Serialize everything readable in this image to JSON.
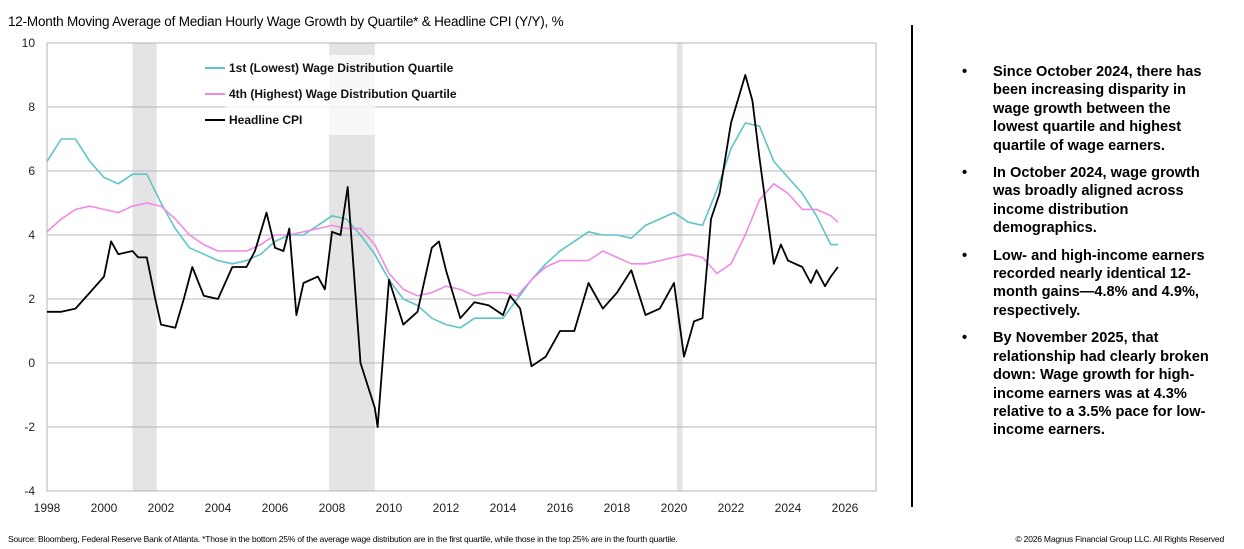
{
  "chart_data": {
    "type": "line",
    "title": "12-Month Moving Average of Median Hourly Wage Growth by Quartile* & Headline CPI (Y/Y), %",
    "xlim": [
      1998,
      2027.1
    ],
    "ylim": [
      -4,
      10
    ],
    "x_ticks": [
      1998,
      2000,
      2002,
      2004,
      2006,
      2008,
      2010,
      2012,
      2014,
      2016,
      2018,
      2020,
      2022,
      2024,
      2026
    ],
    "y_ticks": [
      -4,
      -2,
      0,
      2,
      4,
      6,
      8,
      10
    ],
    "grid": "horizontal",
    "legend_placement": "top-center",
    "recession_shading": [
      [
        2001.0,
        2001.85
      ],
      [
        2007.9,
        2009.5
      ],
      [
        2020.1,
        2020.3
      ]
    ],
    "series": [
      {
        "name": "1st (Lowest) Wage Distribution Quartile",
        "color": "#5ec4c8",
        "x": [
          1998,
          1998.5,
          1999,
          1999.5,
          2000,
          2000.5,
          2001,
          2001.5,
          2002,
          2002.5,
          2003,
          2003.5,
          2004,
          2004.5,
          2005,
          2005.5,
          2006,
          2006.5,
          2007,
          2007.5,
          2008,
          2008.5,
          2009,
          2009.5,
          2010,
          2010.5,
          2011,
          2011.5,
          2012,
          2012.5,
          2013,
          2013.5,
          2014,
          2014.5,
          2015,
          2015.5,
          2016,
          2016.5,
          2017,
          2017.5,
          2018,
          2018.5,
          2019,
          2019.5,
          2020,
          2020.5,
          2021,
          2021.5,
          2022,
          2022.5,
          2023,
          2023.5,
          2024,
          2024.5,
          2025,
          2025.5,
          2025.75
        ],
        "y": [
          6.3,
          7.0,
          7.0,
          6.3,
          5.8,
          5.6,
          5.9,
          5.9,
          5.0,
          4.2,
          3.6,
          3.4,
          3.2,
          3.1,
          3.2,
          3.4,
          3.8,
          4.0,
          4.0,
          4.3,
          4.6,
          4.5,
          4.0,
          3.4,
          2.6,
          2.0,
          1.8,
          1.4,
          1.2,
          1.1,
          1.4,
          1.4,
          1.4,
          2.0,
          2.6,
          3.1,
          3.5,
          3.8,
          4.1,
          4.0,
          4.0,
          3.9,
          4.3,
          4.5,
          4.7,
          4.4,
          4.3,
          5.4,
          6.7,
          7.5,
          7.4,
          6.3,
          5.8,
          5.3,
          4.6,
          3.7,
          3.7
        ]
      },
      {
        "name": "4th (Highest) Wage Distribution Quartile",
        "color": "#f08ae6",
        "x": [
          1998,
          1998.5,
          1999,
          1999.5,
          2000,
          2000.5,
          2001,
          2001.5,
          2002,
          2002.5,
          2003,
          2003.5,
          2004,
          2004.5,
          2005,
          2005.5,
          2006,
          2006.5,
          2007,
          2007.5,
          2008,
          2008.5,
          2009,
          2009.5,
          2010,
          2010.5,
          2011,
          2011.5,
          2012,
          2012.5,
          2013,
          2013.5,
          2014,
          2014.5,
          2015,
          2015.5,
          2016,
          2016.5,
          2017,
          2017.5,
          2018,
          2018.5,
          2019,
          2019.5,
          2020,
          2020.5,
          2021,
          2021.5,
          2022,
          2022.5,
          2023,
          2023.5,
          2024,
          2024.5,
          2025,
          2025.5,
          2025.75
        ],
        "y": [
          4.1,
          4.5,
          4.8,
          4.9,
          4.8,
          4.7,
          4.9,
          5.0,
          4.9,
          4.5,
          4.0,
          3.7,
          3.5,
          3.5,
          3.5,
          3.7,
          4.0,
          4.0,
          4.1,
          4.2,
          4.3,
          4.2,
          4.2,
          3.7,
          2.8,
          2.3,
          2.1,
          2.2,
          2.4,
          2.3,
          2.1,
          2.2,
          2.2,
          2.1,
          2.6,
          3.0,
          3.2,
          3.2,
          3.2,
          3.5,
          3.3,
          3.1,
          3.1,
          3.2,
          3.3,
          3.4,
          3.3,
          2.8,
          3.1,
          4.0,
          5.1,
          5.6,
          5.3,
          4.8,
          4.8,
          4.6,
          4.4
        ]
      },
      {
        "name": "Headline CPI",
        "color": "#000000",
        "x": [
          1998,
          1998.5,
          1999,
          1999.5,
          2000,
          2000.25,
          2000.5,
          2001,
          2001.2,
          2001.5,
          2001.8,
          2002,
          2002.5,
          2002.8,
          2003.1,
          2003.5,
          2004,
          2004.5,
          2005,
          2005.3,
          2005.7,
          2006,
          2006.3,
          2006.5,
          2006.75,
          2007,
          2007.5,
          2007.75,
          2008,
          2008.3,
          2008.55,
          2009,
          2009.5,
          2009.6,
          2010,
          2010.5,
          2011,
          2011.5,
          2011.75,
          2012,
          2012.5,
          2013,
          2013.5,
          2014,
          2014.25,
          2014.6,
          2015,
          2015.5,
          2016,
          2016.5,
          2017,
          2017.5,
          2018,
          2018.5,
          2019,
          2019.5,
          2020,
          2020.35,
          2020.7,
          2021,
          2021.3,
          2021.6,
          2022,
          2022.5,
          2022.75,
          2023,
          2023.5,
          2023.75,
          2024,
          2024.5,
          2024.8,
          2025,
          2025.3,
          2025.5,
          2025.75
        ],
        "y": [
          1.6,
          1.6,
          1.7,
          2.2,
          2.7,
          3.8,
          3.4,
          3.5,
          3.3,
          3.3,
          2.0,
          1.2,
          1.1,
          2.0,
          3.0,
          2.1,
          2.0,
          3.0,
          3.0,
          3.5,
          4.7,
          3.6,
          3.5,
          4.2,
          1.5,
          2.5,
          2.7,
          2.3,
          4.1,
          4.0,
          5.5,
          0.0,
          -1.4,
          -2.0,
          2.6,
          1.2,
          1.6,
          3.6,
          3.8,
          2.9,
          1.4,
          1.9,
          1.8,
          1.5,
          2.1,
          1.7,
          -0.1,
          0.2,
          1.0,
          1.0,
          2.5,
          1.7,
          2.2,
          2.9,
          1.5,
          1.7,
          2.5,
          0.2,
          1.3,
          1.4,
          4.5,
          5.3,
          7.5,
          9.0,
          8.2,
          6.4,
          3.1,
          3.7,
          3.2,
          3.0,
          2.5,
          2.9,
          2.4,
          2.7,
          3.0
        ]
      }
    ]
  },
  "bullets": [
    "Since October 2024, there has been increasing disparity in wage growth between the lowest quartile and highest quartile of wage earners.",
    "In October 2024, wage growth was broadly aligned across income distribution demographics.",
    "Low- and high-income earners recorded nearly identical 12-month gains—4.8% and 4.9%, respectively.",
    "By November 2025, that relationship had clearly broken down: Wage growth for high-income earners was at 4.3% relative to a 3.5% pace for low-income earners."
  ],
  "bullet_glyph": "•",
  "footer": {
    "source": "Source: Bloomberg, Federal Reserve Bank of Atlanta. *Those in the bottom 25% of the average wage distribution are in the first quartile, while those in the top 25% are in the fourth quartile.",
    "copyright": "© 2026 Magnus Financial Group LLC. All Rights Reserved"
  }
}
